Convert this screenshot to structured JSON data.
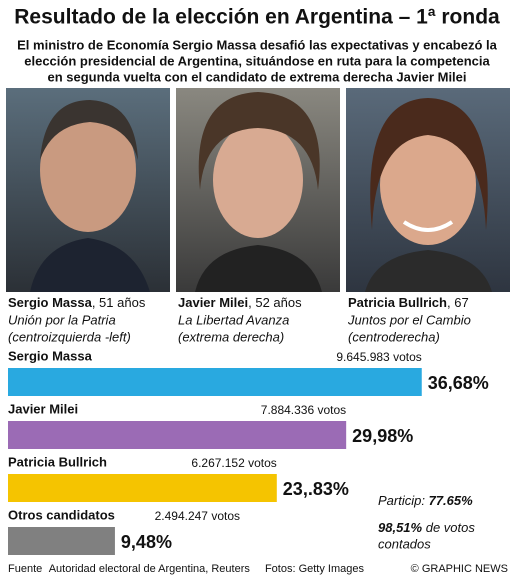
{
  "title": "Resultado de la elección en Argentina – 1ª ronda",
  "subtitle": [
    "El ministro de Economía Sergio Massa desafió las expectativas y encabezó la",
    "elección presidencial de Argentina, situándose en ruta para la competencia",
    "en segunda vuelta con el candidato de extrema derecha Javier Milei"
  ],
  "candidates": [
    {
      "name": "Sergio Massa",
      "age": ", 51 años",
      "party": "Unión por la Patria",
      "ideology": "(centroizquierda -left)"
    },
    {
      "name": "Javier Milei",
      "age": ", 52 años",
      "party": "La Libertad Avanza",
      "ideology": "(extrema derecha)"
    },
    {
      "name": "Patricia Bullrich",
      "age": ", 67",
      "party": "Juntos por el Cambio",
      "ideology": "(centroderecha)"
    }
  ],
  "chart_data": {
    "type": "hbar",
    "categories": [
      "Sergio Massa",
      "Javier Milei",
      "Patricia Bullrich",
      "Otros candidatos"
    ],
    "values": [
      36.68,
      29.98,
      23.83,
      9.48
    ],
    "value_labels": [
      "36,68%",
      "29,98%",
      "23,.83%",
      "9,48%"
    ],
    "votes": [
      9645983,
      7884336,
      6267152,
      2494247
    ],
    "vote_labels": [
      "9.645.983 votos",
      "7.884.336 votos",
      "6.267.152 votos",
      "2.494.247 votos"
    ],
    "colors": [
      "#29a9e0",
      "#9b6bb5",
      "#f5c400",
      "#808080"
    ]
  },
  "turnout": {
    "label": "Particip:",
    "value": "77.65%"
  },
  "counted": {
    "value": "98,51%",
    "label": "de votos",
    "label2": "contados"
  },
  "footer": {
    "source_label": "Fuente",
    "source": "Autoridad electoral de Argentina, Reuters",
    "photos": "Fotos: Getty Images",
    "credit": "© GRAPHIC NEWS"
  }
}
